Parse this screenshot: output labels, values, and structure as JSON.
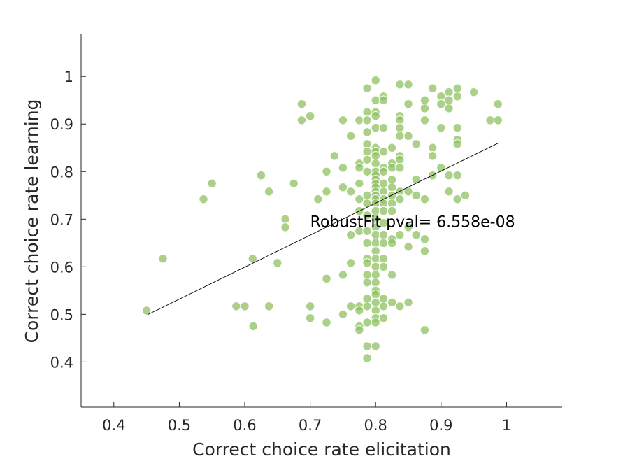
{
  "chart_data": {
    "type": "scatter",
    "title": "",
    "xlabel": "Correct choice rate elicitation",
    "ylabel": "Correct choice rate learning",
    "xlim": [
      0.35,
      1.085
    ],
    "ylim": [
      0.305,
      1.09
    ],
    "xticks": [
      0.4,
      0.5,
      0.6,
      0.7,
      0.8,
      0.9,
      1
    ],
    "xtick_labels": [
      "0.4",
      "0.5",
      "0.6",
      "0.7",
      "0.8",
      "0.9",
      "1"
    ],
    "yticks": [
      0.4,
      0.5,
      0.6,
      0.7,
      0.8,
      0.9,
      1
    ],
    "ytick_labels": [
      "0.4",
      "0.5",
      "0.6",
      "0.7",
      "0.8",
      "0.9",
      "1"
    ],
    "grid": false,
    "legend": "none",
    "colors": {
      "marker": "#8fc162",
      "marker_edge": "#ffffff",
      "fit_line": "#000000",
      "axis": "#262626"
    },
    "annotation": {
      "text": "RobustFit pval= 6.558e-08",
      "x": 0.7,
      "y": 0.695
    },
    "fit_line": {
      "x": [
        0.4525,
        0.9875
      ],
      "y": [
        0.5,
        0.86
      ]
    },
    "points": [
      [
        0.45,
        0.508
      ],
      [
        0.475,
        0.617
      ],
      [
        0.537,
        0.742
      ],
      [
        0.55,
        0.775
      ],
      [
        0.587,
        0.517
      ],
      [
        0.6,
        0.517
      ],
      [
        0.613,
        0.475
      ],
      [
        0.612,
        0.617
      ],
      [
        0.625,
        0.792
      ],
      [
        0.637,
        0.758
      ],
      [
        0.637,
        0.517
      ],
      [
        0.65,
        0.608
      ],
      [
        0.662,
        0.7
      ],
      [
        0.662,
        0.683
      ],
      [
        0.675,
        0.775
      ],
      [
        0.687,
        0.942
      ],
      [
        0.687,
        0.908
      ],
      [
        0.7,
        0.917
      ],
      [
        0.7,
        0.517
      ],
      [
        0.7,
        0.492
      ],
      [
        0.712,
        0.742
      ],
      [
        0.725,
        0.8
      ],
      [
        0.725,
        0.758
      ],
      [
        0.725,
        0.575
      ],
      [
        0.725,
        0.483
      ],
      [
        0.737,
        0.833
      ],
      [
        0.75,
        0.908
      ],
      [
        0.75,
        0.808
      ],
      [
        0.75,
        0.767
      ],
      [
        0.75,
        0.583
      ],
      [
        0.75,
        0.5
      ],
      [
        0.762,
        0.875
      ],
      [
        0.762,
        0.758
      ],
      [
        0.762,
        0.667
      ],
      [
        0.762,
        0.608
      ],
      [
        0.762,
        0.517
      ],
      [
        0.775,
        0.908
      ],
      [
        0.775,
        0.817
      ],
      [
        0.775,
        0.808
      ],
      [
        0.775,
        0.775
      ],
      [
        0.775,
        0.742
      ],
      [
        0.775,
        0.717
      ],
      [
        0.775,
        0.675
      ],
      [
        0.775,
        0.517
      ],
      [
        0.775,
        0.508
      ],
      [
        0.775,
        0.475
      ],
      [
        0.775,
        0.467
      ],
      [
        0.787,
        0.975
      ],
      [
        0.787,
        0.925
      ],
      [
        0.787,
        0.908
      ],
      [
        0.787,
        0.883
      ],
      [
        0.787,
        0.858
      ],
      [
        0.787,
        0.842
      ],
      [
        0.787,
        0.825
      ],
      [
        0.787,
        0.8
      ],
      [
        0.787,
        0.75
      ],
      [
        0.787,
        0.733
      ],
      [
        0.787,
        0.708
      ],
      [
        0.787,
        0.675
      ],
      [
        0.787,
        0.65
      ],
      [
        0.787,
        0.617
      ],
      [
        0.787,
        0.608
      ],
      [
        0.787,
        0.583
      ],
      [
        0.787,
        0.567
      ],
      [
        0.787,
        0.533
      ],
      [
        0.787,
        0.517
      ],
      [
        0.787,
        0.483
      ],
      [
        0.787,
        0.433
      ],
      [
        0.787,
        0.408
      ],
      [
        0.8,
        0.992
      ],
      [
        0.8,
        0.95
      ],
      [
        0.8,
        0.925
      ],
      [
        0.8,
        0.917
      ],
      [
        0.8,
        0.892
      ],
      [
        0.8,
        0.85
      ],
      [
        0.8,
        0.842
      ],
      [
        0.8,
        0.833
      ],
      [
        0.8,
        0.817
      ],
      [
        0.8,
        0.8
      ],
      [
        0.8,
        0.792
      ],
      [
        0.8,
        0.783
      ],
      [
        0.8,
        0.775
      ],
      [
        0.8,
        0.767
      ],
      [
        0.8,
        0.758
      ],
      [
        0.8,
        0.75
      ],
      [
        0.8,
        0.742
      ],
      [
        0.8,
        0.733
      ],
      [
        0.8,
        0.717
      ],
      [
        0.8,
        0.7
      ],
      [
        0.8,
        0.683
      ],
      [
        0.8,
        0.667
      ],
      [
        0.8,
        0.65
      ],
      [
        0.8,
        0.633
      ],
      [
        0.8,
        0.617
      ],
      [
        0.8,
        0.6
      ],
      [
        0.8,
        0.583
      ],
      [
        0.8,
        0.567
      ],
      [
        0.8,
        0.55
      ],
      [
        0.8,
        0.542
      ],
      [
        0.8,
        0.525
      ],
      [
        0.8,
        0.508
      ],
      [
        0.8,
        0.492
      ],
      [
        0.8,
        0.483
      ],
      [
        0.8,
        0.433
      ],
      [
        0.812,
        0.958
      ],
      [
        0.812,
        0.95
      ],
      [
        0.812,
        0.892
      ],
      [
        0.812,
        0.842
      ],
      [
        0.812,
        0.808
      ],
      [
        0.812,
        0.8
      ],
      [
        0.812,
        0.775
      ],
      [
        0.812,
        0.758
      ],
      [
        0.812,
        0.742
      ],
      [
        0.812,
        0.733
      ],
      [
        0.812,
        0.717
      ],
      [
        0.812,
        0.692
      ],
      [
        0.812,
        0.667
      ],
      [
        0.812,
        0.65
      ],
      [
        0.812,
        0.617
      ],
      [
        0.812,
        0.6
      ],
      [
        0.812,
        0.533
      ],
      [
        0.812,
        0.517
      ],
      [
        0.812,
        0.492
      ],
      [
        0.825,
        0.85
      ],
      [
        0.825,
        0.817
      ],
      [
        0.825,
        0.808
      ],
      [
        0.825,
        0.783
      ],
      [
        0.825,
        0.767
      ],
      [
        0.825,
        0.75
      ],
      [
        0.825,
        0.733
      ],
      [
        0.825,
        0.717
      ],
      [
        0.825,
        0.658
      ],
      [
        0.825,
        0.65
      ],
      [
        0.825,
        0.583
      ],
      [
        0.825,
        0.525
      ],
      [
        0.837,
        0.983
      ],
      [
        0.837,
        0.917
      ],
      [
        0.837,
        0.908
      ],
      [
        0.837,
        0.892
      ],
      [
        0.837,
        0.875
      ],
      [
        0.837,
        0.833
      ],
      [
        0.837,
        0.825
      ],
      [
        0.837,
        0.808
      ],
      [
        0.837,
        0.758
      ],
      [
        0.837,
        0.742
      ],
      [
        0.837,
        0.667
      ],
      [
        0.837,
        0.517
      ],
      [
        0.85,
        0.983
      ],
      [
        0.85,
        0.942
      ],
      [
        0.85,
        0.875
      ],
      [
        0.85,
        0.758
      ],
      [
        0.85,
        0.683
      ],
      [
        0.85,
        0.642
      ],
      [
        0.85,
        0.525
      ],
      [
        0.862,
        0.858
      ],
      [
        0.862,
        0.783
      ],
      [
        0.862,
        0.75
      ],
      [
        0.862,
        0.667
      ],
      [
        0.875,
        0.95
      ],
      [
        0.875,
        0.933
      ],
      [
        0.875,
        0.908
      ],
      [
        0.875,
        0.742
      ],
      [
        0.875,
        0.658
      ],
      [
        0.875,
        0.633
      ],
      [
        0.875,
        0.467
      ],
      [
        0.887,
        0.975
      ],
      [
        0.887,
        0.85
      ],
      [
        0.887,
        0.833
      ],
      [
        0.887,
        0.792
      ],
      [
        0.9,
        0.958
      ],
      [
        0.9,
        0.942
      ],
      [
        0.9,
        0.892
      ],
      [
        0.9,
        0.808
      ],
      [
        0.912,
        0.967
      ],
      [
        0.912,
        0.95
      ],
      [
        0.912,
        0.933
      ],
      [
        0.912,
        0.792
      ],
      [
        0.912,
        0.758
      ],
      [
        0.925,
        0.975
      ],
      [
        0.925,
        0.958
      ],
      [
        0.925,
        0.892
      ],
      [
        0.925,
        0.867
      ],
      [
        0.925,
        0.858
      ],
      [
        0.925,
        0.792
      ],
      [
        0.925,
        0.742
      ],
      [
        0.937,
        0.75
      ],
      [
        0.95,
        0.967
      ],
      [
        0.975,
        0.908
      ],
      [
        0.987,
        0.942
      ],
      [
        0.987,
        0.908
      ]
    ]
  }
}
